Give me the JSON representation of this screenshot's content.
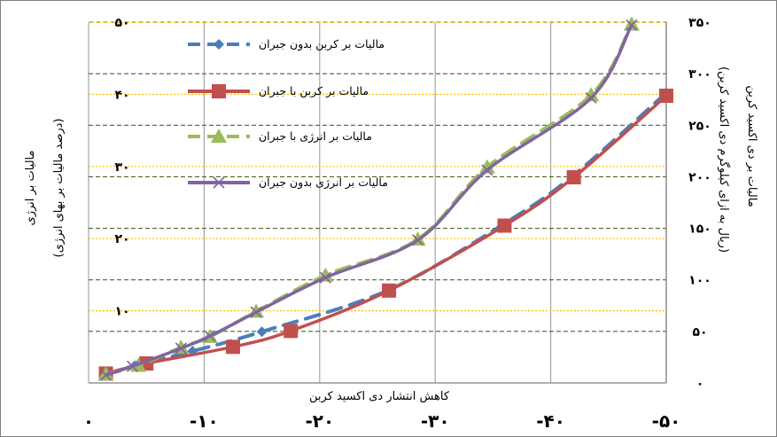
{
  "chart_data": {
    "type": "line",
    "xlabel": "کاهش انتشار دی اکسید کربن",
    "ylabel_left_lines": [
      "مالیات بر انرژی",
      "(درصد مالیات بر بهای انرژی)"
    ],
    "ylabel_right_lines": [
      "مالیات بر دی اکسید کربن",
      "(ریال به ازای کیلوگرم دی اکسید کربن)"
    ],
    "x_ticks": [
      "۰",
      "-۱۰",
      "-۲۰",
      "-۳۰",
      "-۴۰",
      "-۵۰"
    ],
    "x_tick_values": [
      0,
      -10,
      -20,
      -30,
      -40,
      -50
    ],
    "xlim": [
      0,
      -50
    ],
    "y_left_ticks": [
      "۱۰",
      "۲۰",
      "۳۰",
      "۴۰",
      "۵۰"
    ],
    "y_left_tick_values": [
      10,
      20,
      30,
      40,
      50
    ],
    "ylim_left": [
      0,
      50
    ],
    "y_right_ticks": [
      "۰",
      "۵۰",
      "۱۰۰",
      "۱۵۰",
      "۲۰۰",
      "۲۵۰",
      "۳۰۰",
      "۳۵۰"
    ],
    "y_right_tick_values": [
      0,
      50,
      100,
      150,
      200,
      250,
      300,
      350
    ],
    "ylim_right": [
      0,
      350
    ],
    "grid": true,
    "legend_position": "top-center",
    "series": [
      {
        "name": "مالیات بر کربن بدون جبران",
        "axis": "left",
        "color": "#4a7ebb",
        "marker": "diamond",
        "dash": true,
        "points": [
          [
            -1.5,
            1.2
          ],
          [
            -4,
            2.4
          ],
          [
            -9,
            4.4
          ],
          [
            -15,
            7.1
          ],
          [
            -26,
            12.9
          ],
          [
            -36,
            22.1
          ],
          [
            -42,
            28.8
          ],
          [
            -50,
            40.2
          ]
        ]
      },
      {
        "name": "مالیات بر کربن با جبران",
        "axis": "left",
        "color": "#c0504d",
        "marker": "square",
        "dash": false,
        "points": [
          [
            -1.5,
            1.3
          ],
          [
            -5,
            2.7
          ],
          [
            -12.5,
            5.0
          ],
          [
            -17.5,
            7.2
          ],
          [
            -26,
            12.8
          ],
          [
            -36,
            21.8
          ],
          [
            -42,
            28.5
          ],
          [
            -50,
            39.8
          ]
        ]
      },
      {
        "name": "مالیات بر انرژی با جبران",
        "axis": "left",
        "color": "#9bbb59",
        "marker": "triangle",
        "dash": true,
        "points": [
          [
            -1.5,
            1.2
          ],
          [
            -4.3,
            2.4
          ],
          [
            -8,
            4.9
          ],
          [
            -10.5,
            6.4
          ],
          [
            -14.5,
            9.9
          ],
          [
            -20.5,
            14.9
          ],
          [
            -28.5,
            19.9
          ],
          [
            -34.5,
            29.9
          ],
          [
            -43.5,
            39.9
          ],
          [
            -47,
            49.7
          ]
        ]
      },
      {
        "name": "مالیات بر انرژی بدون جبران",
        "axis": "left",
        "color": "#8064a2",
        "marker": "x",
        "dash": false,
        "points": [
          [
            -1.5,
            1.1
          ],
          [
            -3.8,
            2.3
          ],
          [
            -8,
            4.8
          ],
          [
            -10.5,
            6.5
          ],
          [
            -14.5,
            9.8
          ],
          [
            -20.5,
            14.6
          ],
          [
            -28.5,
            19.8
          ],
          [
            -34.5,
            29.5
          ],
          [
            -43.5,
            39.5
          ],
          [
            -47,
            49.6
          ]
        ]
      }
    ]
  }
}
